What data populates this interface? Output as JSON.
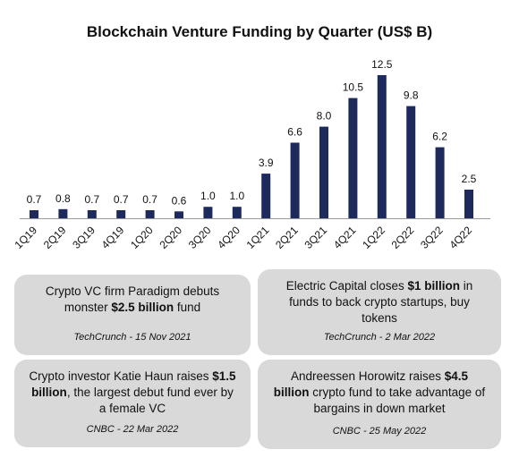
{
  "chart_data": {
    "type": "bar",
    "title": "Blockchain Venture Funding by Quarter (US$ B)",
    "xlabel": "",
    "ylabel": "",
    "ylim": [
      0,
      12.5
    ],
    "grid": false,
    "categories": [
      "1Q19",
      "2Q19",
      "3Q19",
      "4Q19",
      "1Q20",
      "2Q20",
      "3Q20",
      "4Q20",
      "1Q21",
      "2Q21",
      "3Q21",
      "4Q21",
      "1Q22",
      "2Q22",
      "3Q22",
      "4Q22"
    ],
    "values": [
      0.7,
      0.8,
      0.7,
      0.7,
      0.7,
      0.6,
      1.0,
      1.0,
      3.9,
      6.6,
      8.0,
      10.5,
      12.5,
      9.8,
      6.2,
      2.5
    ],
    "value_labels": [
      "0.7",
      "0.8",
      "0.7",
      "0.7",
      "0.7",
      "0.6",
      "1.0",
      "1.0",
      "3.9",
      "6.6",
      "8.0",
      "10.5",
      "12.5",
      "9.8",
      "6.2",
      "2.5"
    ],
    "bar_color": "#1f2a5c"
  },
  "cards": [
    {
      "headline": [
        {
          "text": "Crypto VC firm Paradigm debuts monster ",
          "bold": false
        },
        {
          "text": "$2.5 billion",
          "bold": true
        },
        {
          "text": " fund",
          "bold": false
        }
      ],
      "source": "TechCrunch - 15 Nov 2021"
    },
    {
      "headline": [
        {
          "text": "Electric Capital closes ",
          "bold": false
        },
        {
          "text": "$1 billion",
          "bold": true
        },
        {
          "text": " in funds to back crypto startups, buy tokens",
          "bold": false
        }
      ],
      "source": "TechCrunch - 2 Mar 2022"
    },
    {
      "headline": [
        {
          "text": "Crypto investor Katie Haun raises ",
          "bold": false
        },
        {
          "text": "$1.5 billion",
          "bold": true
        },
        {
          "text": ", the largest debut fund ever by a female VC",
          "bold": false
        }
      ],
      "source": "CNBC - 22 Mar 2022"
    },
    {
      "headline": [
        {
          "text": "Andreessen Horowitz raises ",
          "bold": false
        },
        {
          "text": "$4.5 billion",
          "bold": true
        },
        {
          "text": " crypto fund to take advantage of bargains in down market",
          "bold": false
        }
      ],
      "source": "CNBC - 25 May 2022"
    }
  ],
  "colors": {
    "card_background": "#d9d9d9",
    "axis": "#999999",
    "text": "#111111"
  }
}
